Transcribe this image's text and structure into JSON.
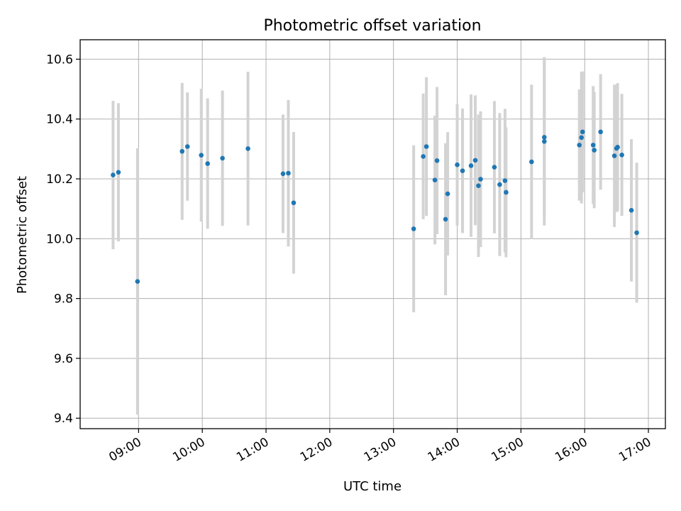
{
  "chart_data": {
    "type": "scatter",
    "title": "Photometric offset variation",
    "xlabel": "UTC time",
    "ylabel": "Photometric offset",
    "grid": true,
    "x_ticks": [
      "09:00",
      "10:00",
      "11:00",
      "12:00",
      "13:00",
      "14:00",
      "15:00",
      "16:00",
      "17:00"
    ],
    "y_ticks": [
      "9.4",
      "9.6",
      "9.8",
      "10.0",
      "10.2",
      "10.4",
      "10.6"
    ],
    "xlim": [
      "08:05",
      "17:16"
    ],
    "ylim": [
      9.365,
      10.665
    ],
    "colors": {
      "point": "#1f77b4",
      "errorbar": "#d3d3d3",
      "grid": "#b0b0b0"
    },
    "series": [
      {
        "x": [
          "08:36",
          "08:41",
          "08:59",
          "09:41",
          "09:46",
          "09:59",
          "10:05",
          "10:19",
          "10:43",
          "11:16",
          "11:21",
          "11:26",
          "13:19",
          "13:28",
          "13:31",
          "13:39",
          "13:41",
          "13:49",
          "13:51",
          "14:00",
          "14:05",
          "14:13",
          "14:17",
          "14:20",
          "14:22",
          "14:35",
          "14:40",
          "14:45",
          "14:46",
          "15:10",
          "15:22",
          "15:22",
          "15:55",
          "15:57",
          "15:58",
          "16:08",
          "16:09",
          "16:15",
          "16:28",
          "16:30",
          "16:31",
          "16:35",
          "16:44",
          "16:49"
        ],
        "y": [
          10.213,
          10.222,
          9.857,
          10.292,
          10.308,
          10.279,
          10.251,
          10.269,
          10.301,
          10.217,
          10.219,
          10.12,
          10.033,
          10.275,
          10.308,
          10.196,
          10.261,
          10.065,
          10.15,
          10.247,
          10.227,
          10.244,
          10.262,
          10.177,
          10.199,
          10.239,
          10.181,
          10.194,
          10.155,
          10.257,
          10.325,
          10.339,
          10.313,
          10.338,
          10.357,
          10.313,
          10.296,
          10.357,
          10.277,
          10.302,
          10.306,
          10.28,
          10.095,
          10.02
        ],
        "yerr": [
          0.248,
          0.231,
          0.445,
          0.229,
          0.181,
          0.222,
          0.218,
          0.226,
          0.257,
          0.198,
          0.245,
          0.237,
          0.279,
          0.21,
          0.232,
          0.215,
          0.246,
          0.254,
          0.206,
          0.203,
          0.208,
          0.238,
          0.217,
          0.238,
          0.227,
          0.221,
          0.239,
          0.24,
          0.217,
          0.258,
          0.281,
          0.268,
          0.186,
          0.22,
          0.202,
          0.197,
          0.194,
          0.193,
          0.238,
          0.213,
          0.214,
          0.204,
          0.238,
          0.234
        ]
      }
    ]
  }
}
